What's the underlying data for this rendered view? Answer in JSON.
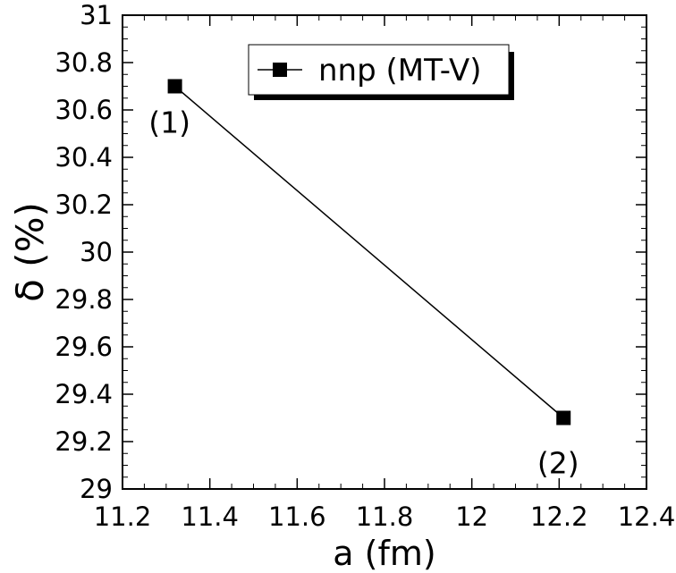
{
  "chart_data": {
    "type": "line",
    "xlabel": "a (fm)",
    "ylabel": "δ (%)",
    "xlim": [
      11.2,
      12.4
    ],
    "ylim": [
      29,
      31
    ],
    "x_ticks": [
      "11.2",
      "11.4",
      "11.6",
      "11.8",
      "12",
      "12.2",
      "12.4"
    ],
    "y_ticks": [
      "29",
      "29.2",
      "29.4",
      "29.6",
      "29.8",
      "30",
      "30.2",
      "30.4",
      "30.6",
      "30.8",
      "31"
    ],
    "grid": false,
    "legend_position": "top-center",
    "series": [
      {
        "name": "nnp (MT-V)",
        "color": "#000000",
        "marker": "square",
        "x": [
          11.32,
          12.21
        ],
        "y": [
          30.7,
          29.3
        ],
        "point_labels": [
          "(1)",
          "(2)"
        ]
      }
    ]
  }
}
